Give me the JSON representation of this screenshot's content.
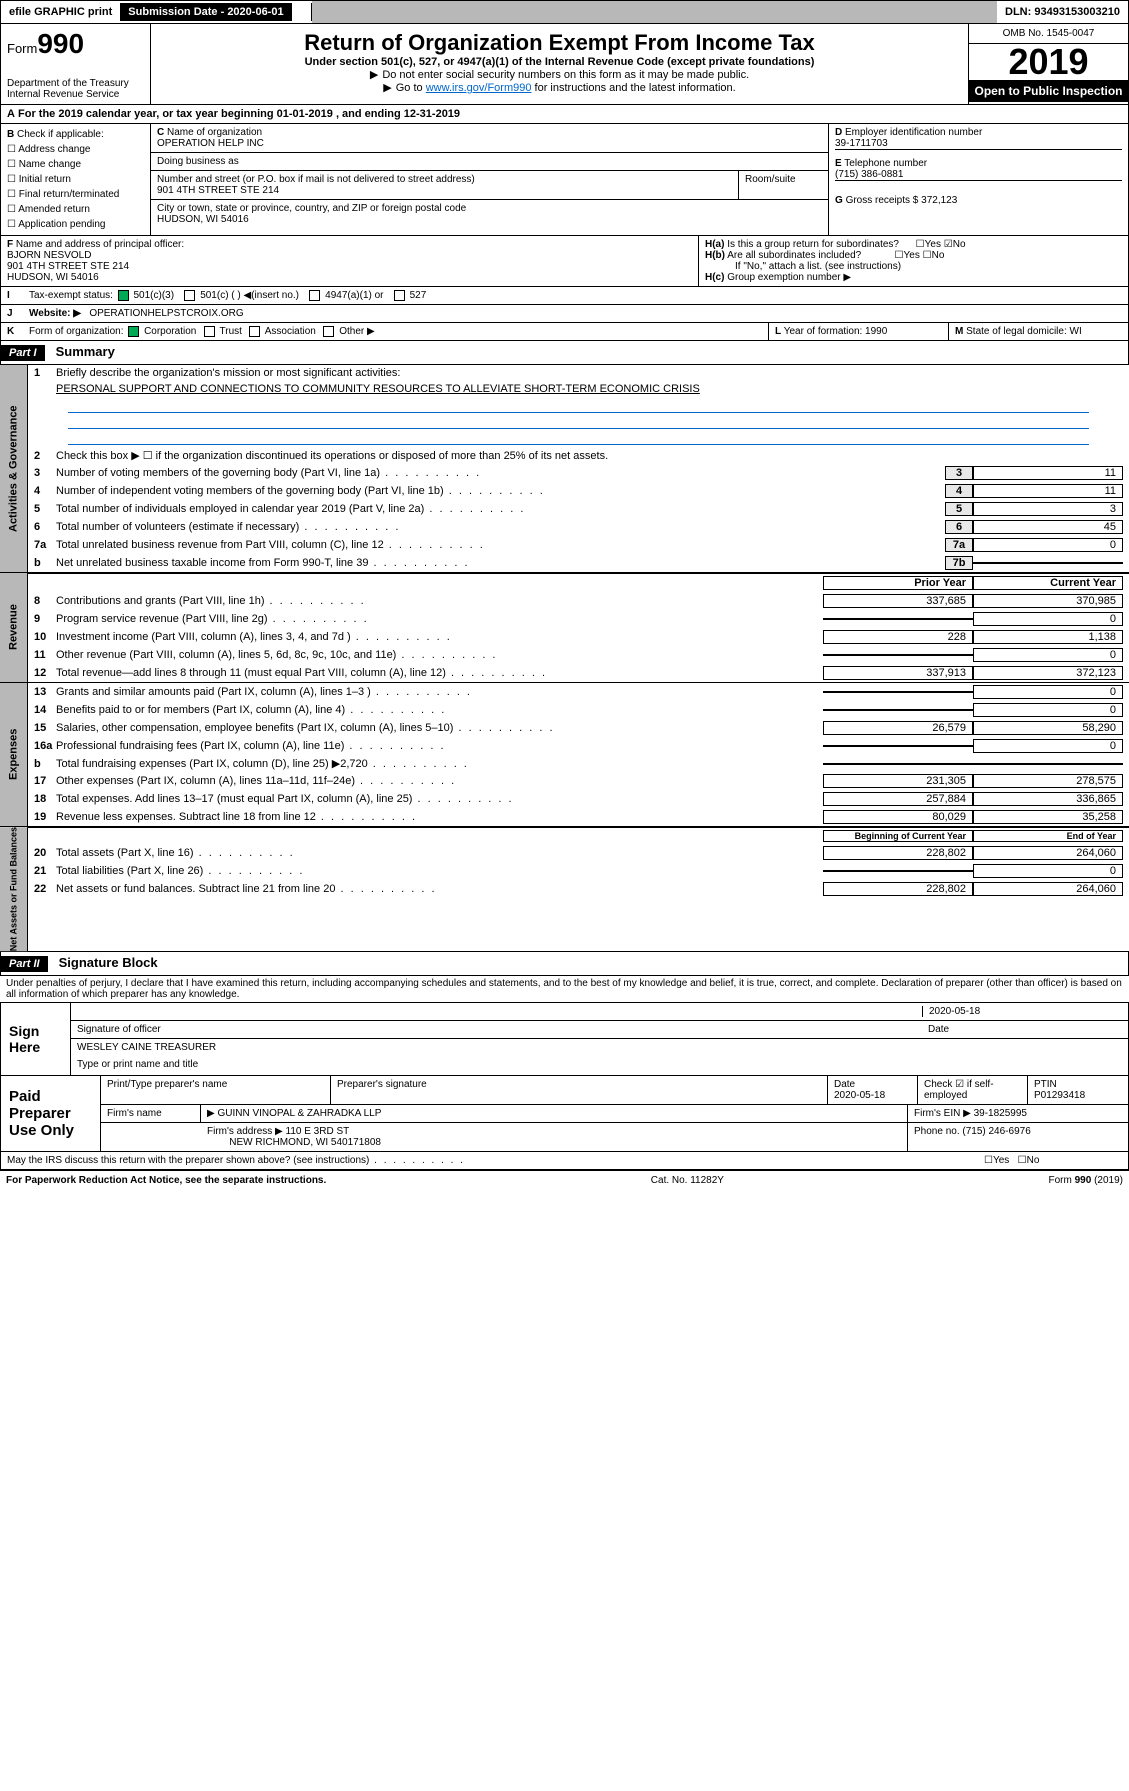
{
  "top": {
    "ef": "efile GRAPHIC print",
    "sub": "Submission Date - 2020-06-01",
    "dln": "DLN: 93493153003210"
  },
  "hdr": {
    "form": "Form",
    "num": "990",
    "dept": "Department of the Treasury\nInternal Revenue Service",
    "title": "Return of Organization Exempt From Income Tax",
    "sub1": "Under section 501(c), 527, or 4947(a)(1) of the Internal Revenue Code (except private foundations)",
    "sub2": "Do not enter social security numbers on this form as it may be made public.",
    "sub3": "Go to www.irs.gov/Form990 for instructions and the latest information.",
    "omb": "OMB No. 1545-0047",
    "year": "2019",
    "otp": "Open to Public Inspection"
  },
  "A": {
    "cal": "For the 2019 calendar year, or tax year beginning 01-01-2019    , and ending 12-31-2019"
  },
  "B": {
    "t": "Check if applicable:",
    "o": [
      "Address change",
      "Name change",
      "Initial return",
      "Final return/terminated",
      "Amended return",
      "Application pending"
    ]
  },
  "C": {
    "l": "Name of organization",
    "name": "OPERATION HELP INC",
    "dba": "Doing business as",
    "addr_l": "Number and street (or P.O. box if mail is not delivered to street address)",
    "addr": "901 4TH STREET STE 214",
    "room": "Room/suite",
    "city_l": "City or town, state or province, country, and ZIP or foreign postal code",
    "city": "HUDSON, WI  54016"
  },
  "D": {
    "l": "Employer identification number",
    "v": "39-1711703"
  },
  "E": {
    "l": "Telephone number",
    "v": "(715) 386-0881"
  },
  "G": {
    "l": "Gross receipts $ 372,123"
  },
  "F": {
    "l": "Name and address of principal officer:",
    "n": "BJORN NESVOLD",
    "a": "901 4TH STREET STE 214",
    "c": "HUDSON, WI  54016"
  },
  "H": {
    "a": "Is this a group return for subordinates?",
    "b": "Are all subordinates included?",
    "yn": "Yes",
    "no": "No",
    "ifno": "If \"No,\" attach a list. (see instructions)",
    "c": "Group exemption number ▶"
  },
  "I": {
    "l": "Tax-exempt status:",
    "o": [
      "501(c)(3)",
      "501(c) (  ) ◀(insert no.)",
      "4947(a)(1) or",
      "527"
    ]
  },
  "J": {
    "l": "Website: ▶",
    "v": "OPERATIONHELPSTCROIX.ORG"
  },
  "K": {
    "l": "Form of organization:",
    "o": [
      "Corporation",
      "Trust",
      "Association",
      "Other ▶"
    ]
  },
  "L": {
    "l": "Year of formation: 1990"
  },
  "M": {
    "l": "State of legal domicile: WI"
  },
  "pI": {
    "t": "Part I",
    "h": "Summary"
  },
  "p1": {
    "tab": "Activities & Governance",
    "l1": "Briefly describe the organization's mission or most significant activities:",
    "l1v": "PERSONAL SUPPORT AND CONNECTIONS TO COMMUNITY RESOURCES TO ALLEVIATE SHORT-TERM ECONOMIC CRISIS",
    "l2": "Check this box ▶ ☐  if the organization discontinued its operations or disposed of more than 25% of its net assets.",
    "rows": [
      {
        "n": "3",
        "d": "Number of voting members of the governing body (Part VI, line 1a)",
        "b": "3",
        "v": "11"
      },
      {
        "n": "4",
        "d": "Number of independent voting members of the governing body (Part VI, line 1b)",
        "b": "4",
        "v": "11"
      },
      {
        "n": "5",
        "d": "Total number of individuals employed in calendar year 2019 (Part V, line 2a)",
        "b": "5",
        "v": "3"
      },
      {
        "n": "6",
        "d": "Total number of volunteers (estimate if necessary)",
        "b": "6",
        "v": "45"
      },
      {
        "n": "7a",
        "d": "Total unrelated business revenue from Part VIII, column (C), line 12",
        "b": "7a",
        "v": "0"
      },
      {
        "n": "b",
        "d": "Net unrelated business taxable income from Form 990-T, line 39",
        "b": "7b",
        "v": ""
      }
    ]
  },
  "rev": {
    "tab": "Revenue",
    "h1": "Prior Year",
    "h2": "Current Year",
    "rows": [
      {
        "n": "8",
        "d": "Contributions and grants (Part VIII, line 1h)",
        "p": "337,685",
        "c": "370,985"
      },
      {
        "n": "9",
        "d": "Program service revenue (Part VIII, line 2g)",
        "p": "",
        "c": "0"
      },
      {
        "n": "10",
        "d": "Investment income (Part VIII, column (A), lines 3, 4, and 7d )",
        "p": "228",
        "c": "1,138"
      },
      {
        "n": "11",
        "d": "Other revenue (Part VIII, column (A), lines 5, 6d, 8c, 9c, 10c, and 11e)",
        "p": "",
        "c": "0"
      },
      {
        "n": "12",
        "d": "Total revenue—add lines 8 through 11 (must equal Part VIII, column (A), line 12)",
        "p": "337,913",
        "c": "372,123"
      }
    ]
  },
  "exp": {
    "tab": "Expenses",
    "rows": [
      {
        "n": "13",
        "d": "Grants and similar amounts paid (Part IX, column (A), lines 1–3 )",
        "p": "",
        "c": "0"
      },
      {
        "n": "14",
        "d": "Benefits paid to or for members (Part IX, column (A), line 4)",
        "p": "",
        "c": "0"
      },
      {
        "n": "15",
        "d": "Salaries, other compensation, employee benefits (Part IX, column (A), lines 5–10)",
        "p": "26,579",
        "c": "58,290"
      },
      {
        "n": "16a",
        "d": "Professional fundraising fees (Part IX, column (A), line 11e)",
        "p": "",
        "c": "0"
      },
      {
        "n": "b",
        "d": "Total fundraising expenses (Part IX, column (D), line 25) ▶2,720",
        "p": "",
        "c": ""
      },
      {
        "n": "17",
        "d": "Other expenses (Part IX, column (A), lines 11a–11d, 11f–24e)",
        "p": "231,305",
        "c": "278,575"
      },
      {
        "n": "18",
        "d": "Total expenses. Add lines 13–17 (must equal Part IX, column (A), line 25)",
        "p": "257,884",
        "c": "336,865"
      },
      {
        "n": "19",
        "d": "Revenue less expenses. Subtract line 18 from line 12",
        "p": "80,029",
        "c": "35,258"
      }
    ]
  },
  "na": {
    "tab": "Net Assets or Fund Balances",
    "h1": "Beginning of Current Year",
    "h2": "End of Year",
    "rows": [
      {
        "n": "20",
        "d": "Total assets (Part X, line 16)",
        "p": "228,802",
        "c": "264,060"
      },
      {
        "n": "21",
        "d": "Total liabilities (Part X, line 26)",
        "p": "",
        "c": "0"
      },
      {
        "n": "22",
        "d": "Net assets or fund balances. Subtract line 21 from line 20",
        "p": "228,802",
        "c": "264,060"
      }
    ]
  },
  "pII": {
    "t": "Part II",
    "h": "Signature Block",
    "txt": "Under penalties of perjury, I declare that I have examined this return, including accompanying schedules and statements, and to the best of my knowledge and belief, it is true, correct, and complete. Declaration of preparer (other than officer) is based on all information of which preparer has any knowledge."
  },
  "sign": {
    "l": "Sign Here",
    "d": "2020-05-18",
    "sig": "Signature of officer",
    "dt": "Date",
    "name": "WESLEY CAINE TREASURER",
    "nl": "Type or print name and title"
  },
  "paid": {
    "l": "Paid Preparer Use Only",
    "h": [
      "Print/Type preparer's name",
      "Preparer's signature",
      "Date",
      "",
      "PTIN"
    ],
    "r1": [
      "",
      "",
      "2020-05-18",
      "Check ☑ if self-employed",
      "P01293418"
    ],
    "fn": "Firm's name",
    "fnv": "▶ GUINN VINOPAL & ZAHRADKA LLP",
    "fe": "Firm's EIN ▶ 39-1825995",
    "fa": "Firm's address ▶ 110 E 3RD ST",
    "fav": "NEW RICHMOND, WI  540171808",
    "ph": "Phone no. (715) 246-6976"
  },
  "disc": {
    "q": "May the IRS discuss this return with the preparer shown above? (see instructions)",
    "y": "Yes",
    "n": "No"
  },
  "ft": {
    "l": "For Paperwork Reduction Act Notice, see the separate instructions.",
    "c": "Cat. No. 11282Y",
    "r": "Form 990 (2019)"
  }
}
